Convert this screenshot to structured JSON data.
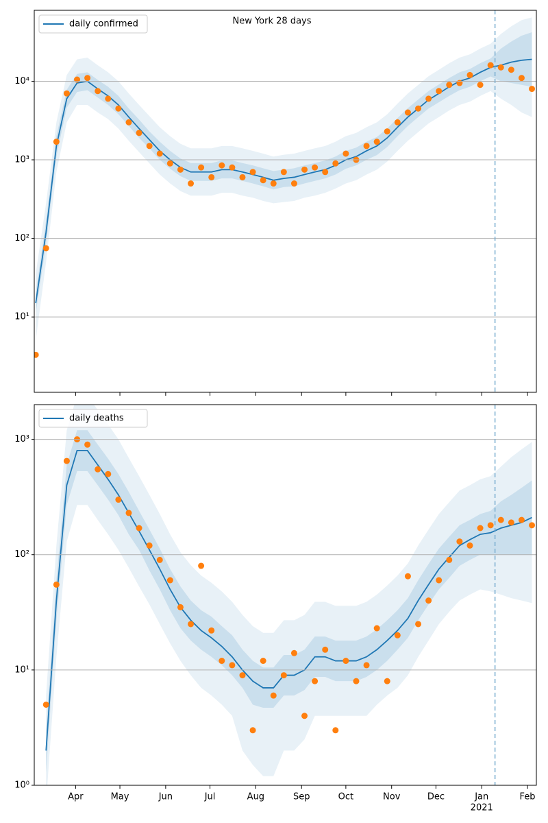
{
  "chart_data": [
    {
      "type": "line",
      "title": "New York 28 days",
      "log_y": true,
      "grid": true,
      "legend": "upper left",
      "x": [
        4,
        11,
        18,
        25,
        32,
        39,
        46,
        53,
        60,
        67,
        74,
        81,
        88,
        95,
        102,
        109,
        116,
        123,
        130,
        137,
        144,
        151,
        158,
        165,
        172,
        179,
        186,
        193,
        200,
        207,
        214,
        221,
        228,
        235,
        242,
        249,
        256,
        263,
        270,
        277,
        284,
        291,
        298,
        305,
        312,
        319,
        326,
        333,
        340
      ],
      "xlim": [
        3,
        343
      ],
      "vline": 315,
      "ylim": [
        1.1,
        80000
      ],
      "yticks": [
        {
          "value": 10,
          "label": "10¹"
        },
        {
          "value": 100,
          "label": "10²"
        },
        {
          "value": 1000,
          "label": "10³"
        },
        {
          "value": 10000,
          "label": "10⁴"
        }
      ],
      "series": [
        {
          "name": "daily confirmed",
          "color": "#1f77b4",
          "values": [
            15,
            120,
            1500,
            6000,
            9500,
            10000,
            8000,
            6500,
            5000,
            3500,
            2500,
            1800,
            1300,
            1000,
            800,
            700,
            700,
            700,
            750,
            750,
            700,
            650,
            600,
            550,
            580,
            600,
            650,
            700,
            750,
            850,
            1000,
            1100,
            1300,
            1500,
            1900,
            2600,
            3500,
            4500,
            5800,
            7000,
            8500,
            10000,
            11000,
            13000,
            15000,
            16000,
            17500,
            18500,
            19000
          ]
        }
      ],
      "points": {
        "color": "#ff7f0e",
        "values": [
          3.3,
          75,
          1700,
          7000,
          10500,
          11000,
          7500,
          6000,
          4500,
          3000,
          2200,
          1500,
          1200,
          900,
          750,
          500,
          800,
          600,
          850,
          800,
          600,
          700,
          550,
          500,
          700,
          500,
          750,
          800,
          700,
          900,
          1200,
          1000,
          1500,
          1700,
          2300,
          3000,
          4000,
          4500,
          6000,
          7500,
          9000,
          9500,
          12000,
          9000,
          16000,
          15000,
          14000,
          11000,
          8000
        ]
      },
      "bands": [
        {
          "color": "#1f77b4",
          "opacity": 0.1,
          "lower": [
            5,
            50,
            700,
            3000,
            5000,
            5000,
            4000,
            3300,
            2500,
            1750,
            1250,
            900,
            650,
            500,
            400,
            350,
            350,
            350,
            380,
            380,
            350,
            330,
            300,
            280,
            290,
            300,
            330,
            350,
            380,
            430,
            500,
            550,
            650,
            750,
            950,
            1300,
            1750,
            2250,
            2900,
            3500,
            4250,
            5000,
            5500,
            6500,
            7500,
            6000,
            5000,
            4000,
            3500
          ],
          "upper": [
            35,
            280,
            3000,
            12000,
            19000,
            20000,
            16000,
            13000,
            10000,
            7000,
            5000,
            3600,
            2600,
            2000,
            1600,
            1400,
            1400,
            1400,
            1500,
            1500,
            1400,
            1300,
            1200,
            1100,
            1160,
            1200,
            1300,
            1400,
            1500,
            1700,
            2000,
            2200,
            2600,
            3000,
            3800,
            5200,
            7000,
            9000,
            11600,
            14000,
            17000,
            20000,
            22000,
            26000,
            30000,
            40000,
            50000,
            60000,
            65000
          ]
        },
        {
          "color": "#1f77b4",
          "opacity": 0.15,
          "lower": [
            11,
            85,
            1100,
            4600,
            7300,
            7700,
            6200,
            5000,
            3800,
            2700,
            1900,
            1400,
            1000,
            770,
            620,
            540,
            540,
            540,
            580,
            580,
            540,
            500,
            460,
            420,
            450,
            460,
            500,
            540,
            580,
            650,
            770,
            850,
            1000,
            1150,
            1460,
            2000,
            2700,
            3500,
            4500,
            5400,
            6500,
            7700,
            8500,
            10000,
            11500,
            10000,
            9500,
            9000,
            8500
          ],
          "upper": [
            20,
            170,
            2000,
            7800,
            12400,
            13000,
            10400,
            8500,
            6500,
            4500,
            3250,
            2300,
            1700,
            1300,
            1040,
            910,
            910,
            910,
            980,
            980,
            910,
            850,
            780,
            720,
            750,
            780,
            850,
            910,
            980,
            1100,
            1300,
            1430,
            1700,
            1950,
            2500,
            3400,
            4550,
            5850,
            7500,
            9100,
            11000,
            13000,
            14300,
            17000,
            19500,
            26000,
            32000,
            38000,
            42000
          ]
        }
      ]
    },
    {
      "type": "line",
      "log_y": true,
      "grid": true,
      "legend": "upper left",
      "x": [
        4,
        11,
        18,
        25,
        32,
        39,
        46,
        53,
        60,
        67,
        74,
        81,
        88,
        95,
        102,
        109,
        116,
        123,
        130,
        137,
        144,
        151,
        158,
        165,
        172,
        179,
        186,
        193,
        200,
        207,
        214,
        221,
        228,
        235,
        242,
        249,
        256,
        263,
        270,
        277,
        284,
        291,
        298,
        305,
        312,
        319,
        326,
        333,
        340
      ],
      "xlim": [
        3,
        343
      ],
      "vline": 315,
      "xticks": [
        {
          "value": 31,
          "label": "Apr"
        },
        {
          "value": 61,
          "label": "May"
        },
        {
          "value": 92,
          "label": "Jun"
        },
        {
          "value": 122,
          "label": "Jul"
        },
        {
          "value": 153,
          "label": "Aug"
        },
        {
          "value": 184,
          "label": "Sep"
        },
        {
          "value": 214,
          "label": "Oct"
        },
        {
          "value": 245,
          "label": "Nov"
        },
        {
          "value": 275,
          "label": "Dec"
        },
        {
          "value": 306,
          "label": "Jan"
        },
        {
          "value": 337,
          "label": "Feb"
        }
      ],
      "annotations": [
        {
          "text": "2021",
          "x": 306
        }
      ],
      "ylim": [
        1,
        2000
      ],
      "yticks": [
        {
          "value": 1,
          "label": "10⁰"
        },
        {
          "value": 10,
          "label": "10¹"
        },
        {
          "value": 100,
          "label": "10²"
        },
        {
          "value": 1000,
          "label": "10³"
        }
      ],
      "series": [
        {
          "name": "daily deaths",
          "color": "#1f77b4",
          "values": [
            null,
            2,
            40,
            400,
            800,
            800,
            600,
            450,
            330,
            230,
            160,
            110,
            75,
            50,
            35,
            27,
            22,
            19,
            16,
            13,
            10,
            8,
            7,
            7,
            9,
            9,
            10,
            13,
            13,
            12,
            12,
            12,
            13,
            15,
            18,
            22,
            28,
            40,
            55,
            75,
            95,
            120,
            135,
            150,
            155,
            170,
            180,
            190,
            210
          ]
        }
      ],
      "points": {
        "color": "#ff7f0e",
        "values": [
          null,
          5,
          55,
          650,
          1000,
          900,
          550,
          500,
          300,
          230,
          170,
          120,
          90,
          60,
          35,
          25,
          80,
          22,
          12,
          11,
          9,
          3,
          12,
          6,
          9,
          14,
          4,
          8,
          15,
          3,
          12,
          8,
          11,
          23,
          8,
          20,
          65,
          25,
          40,
          60,
          90,
          130,
          120,
          170,
          180,
          200,
          190,
          200,
          180
        ]
      },
      "bands": [
        {
          "color": "#1f77b4",
          "opacity": 0.1,
          "lower": [
            null,
            0.7,
            13,
            130,
            270,
            270,
            200,
            150,
            110,
            77,
            53,
            37,
            25,
            17,
            12,
            9,
            7,
            6,
            5,
            4,
            2,
            1.5,
            1.2,
            1.2,
            2,
            2,
            2.5,
            4,
            4,
            4,
            4,
            4,
            4,
            5,
            6,
            7,
            9,
            13,
            18,
            25,
            32,
            40,
            45,
            50,
            48,
            45,
            42,
            40,
            38
          ],
          "upper": [
            null,
            6,
            120,
            1200,
            2400,
            2400,
            1800,
            1350,
            1000,
            690,
            480,
            330,
            225,
            150,
            105,
            81,
            66,
            57,
            48,
            39,
            30,
            24,
            21,
            21,
            27,
            27,
            30,
            39,
            39,
            36,
            36,
            36,
            39,
            45,
            54,
            66,
            84,
            120,
            165,
            225,
            285,
            360,
            400,
            450,
            480,
            580,
            700,
            820,
            950
          ]
        },
        {
          "color": "#1f77b4",
          "opacity": 0.15,
          "lower": [
            null,
            1.3,
            27,
            270,
            530,
            530,
            400,
            300,
            220,
            150,
            110,
            73,
            50,
            33,
            23,
            18,
            15,
            13,
            11,
            9,
            7,
            5,
            4.7,
            4.7,
            6,
            6,
            6.7,
            8.7,
            8.7,
            8,
            8,
            8,
            8.7,
            10,
            12,
            15,
            19,
            27,
            37,
            50,
            63,
            80,
            90,
            100,
            100,
            100,
            100,
            100,
            100
          ],
          "upper": [
            null,
            3,
            60,
            600,
            1200,
            1200,
            900,
            680,
            500,
            350,
            240,
            165,
            113,
            75,
            53,
            40,
            33,
            29,
            24,
            20,
            15,
            12,
            10.5,
            10.5,
            13.5,
            13.5,
            15,
            19.5,
            19.5,
            18,
            18,
            18,
            19.5,
            22.5,
            27,
            33,
            42,
            60,
            83,
            113,
            143,
            180,
            200,
            225,
            240,
            290,
            330,
            380,
            440
          ]
        }
      ]
    }
  ]
}
